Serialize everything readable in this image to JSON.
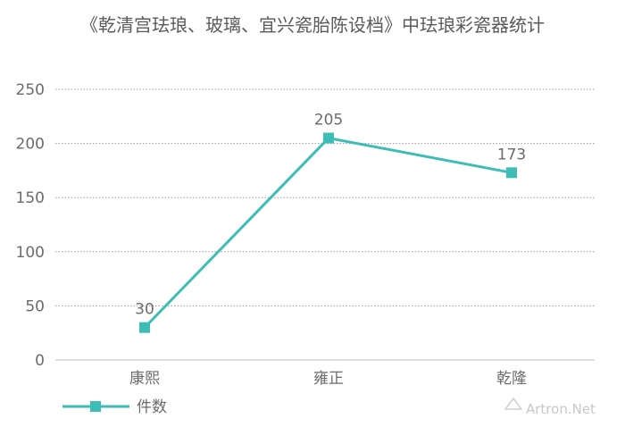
{
  "chart_data": {
    "type": "line",
    "title": "《乾清宫珐琅、玻璃、宜兴瓷胎陈设档》中珐琅彩瓷器统计",
    "categories": [
      "康熙",
      "雍正",
      "乾隆"
    ],
    "series": [
      {
        "name": "件数",
        "values": [
          30,
          205,
          173
        ],
        "color": "#3dbdb6"
      }
    ],
    "ylim": [
      0,
      250
    ],
    "yticks": [
      0,
      50,
      100,
      150,
      200,
      250
    ],
    "grid": true,
    "legend": "bottom-left",
    "xlabel": "",
    "ylabel": ""
  },
  "watermark": "Artron.Net"
}
